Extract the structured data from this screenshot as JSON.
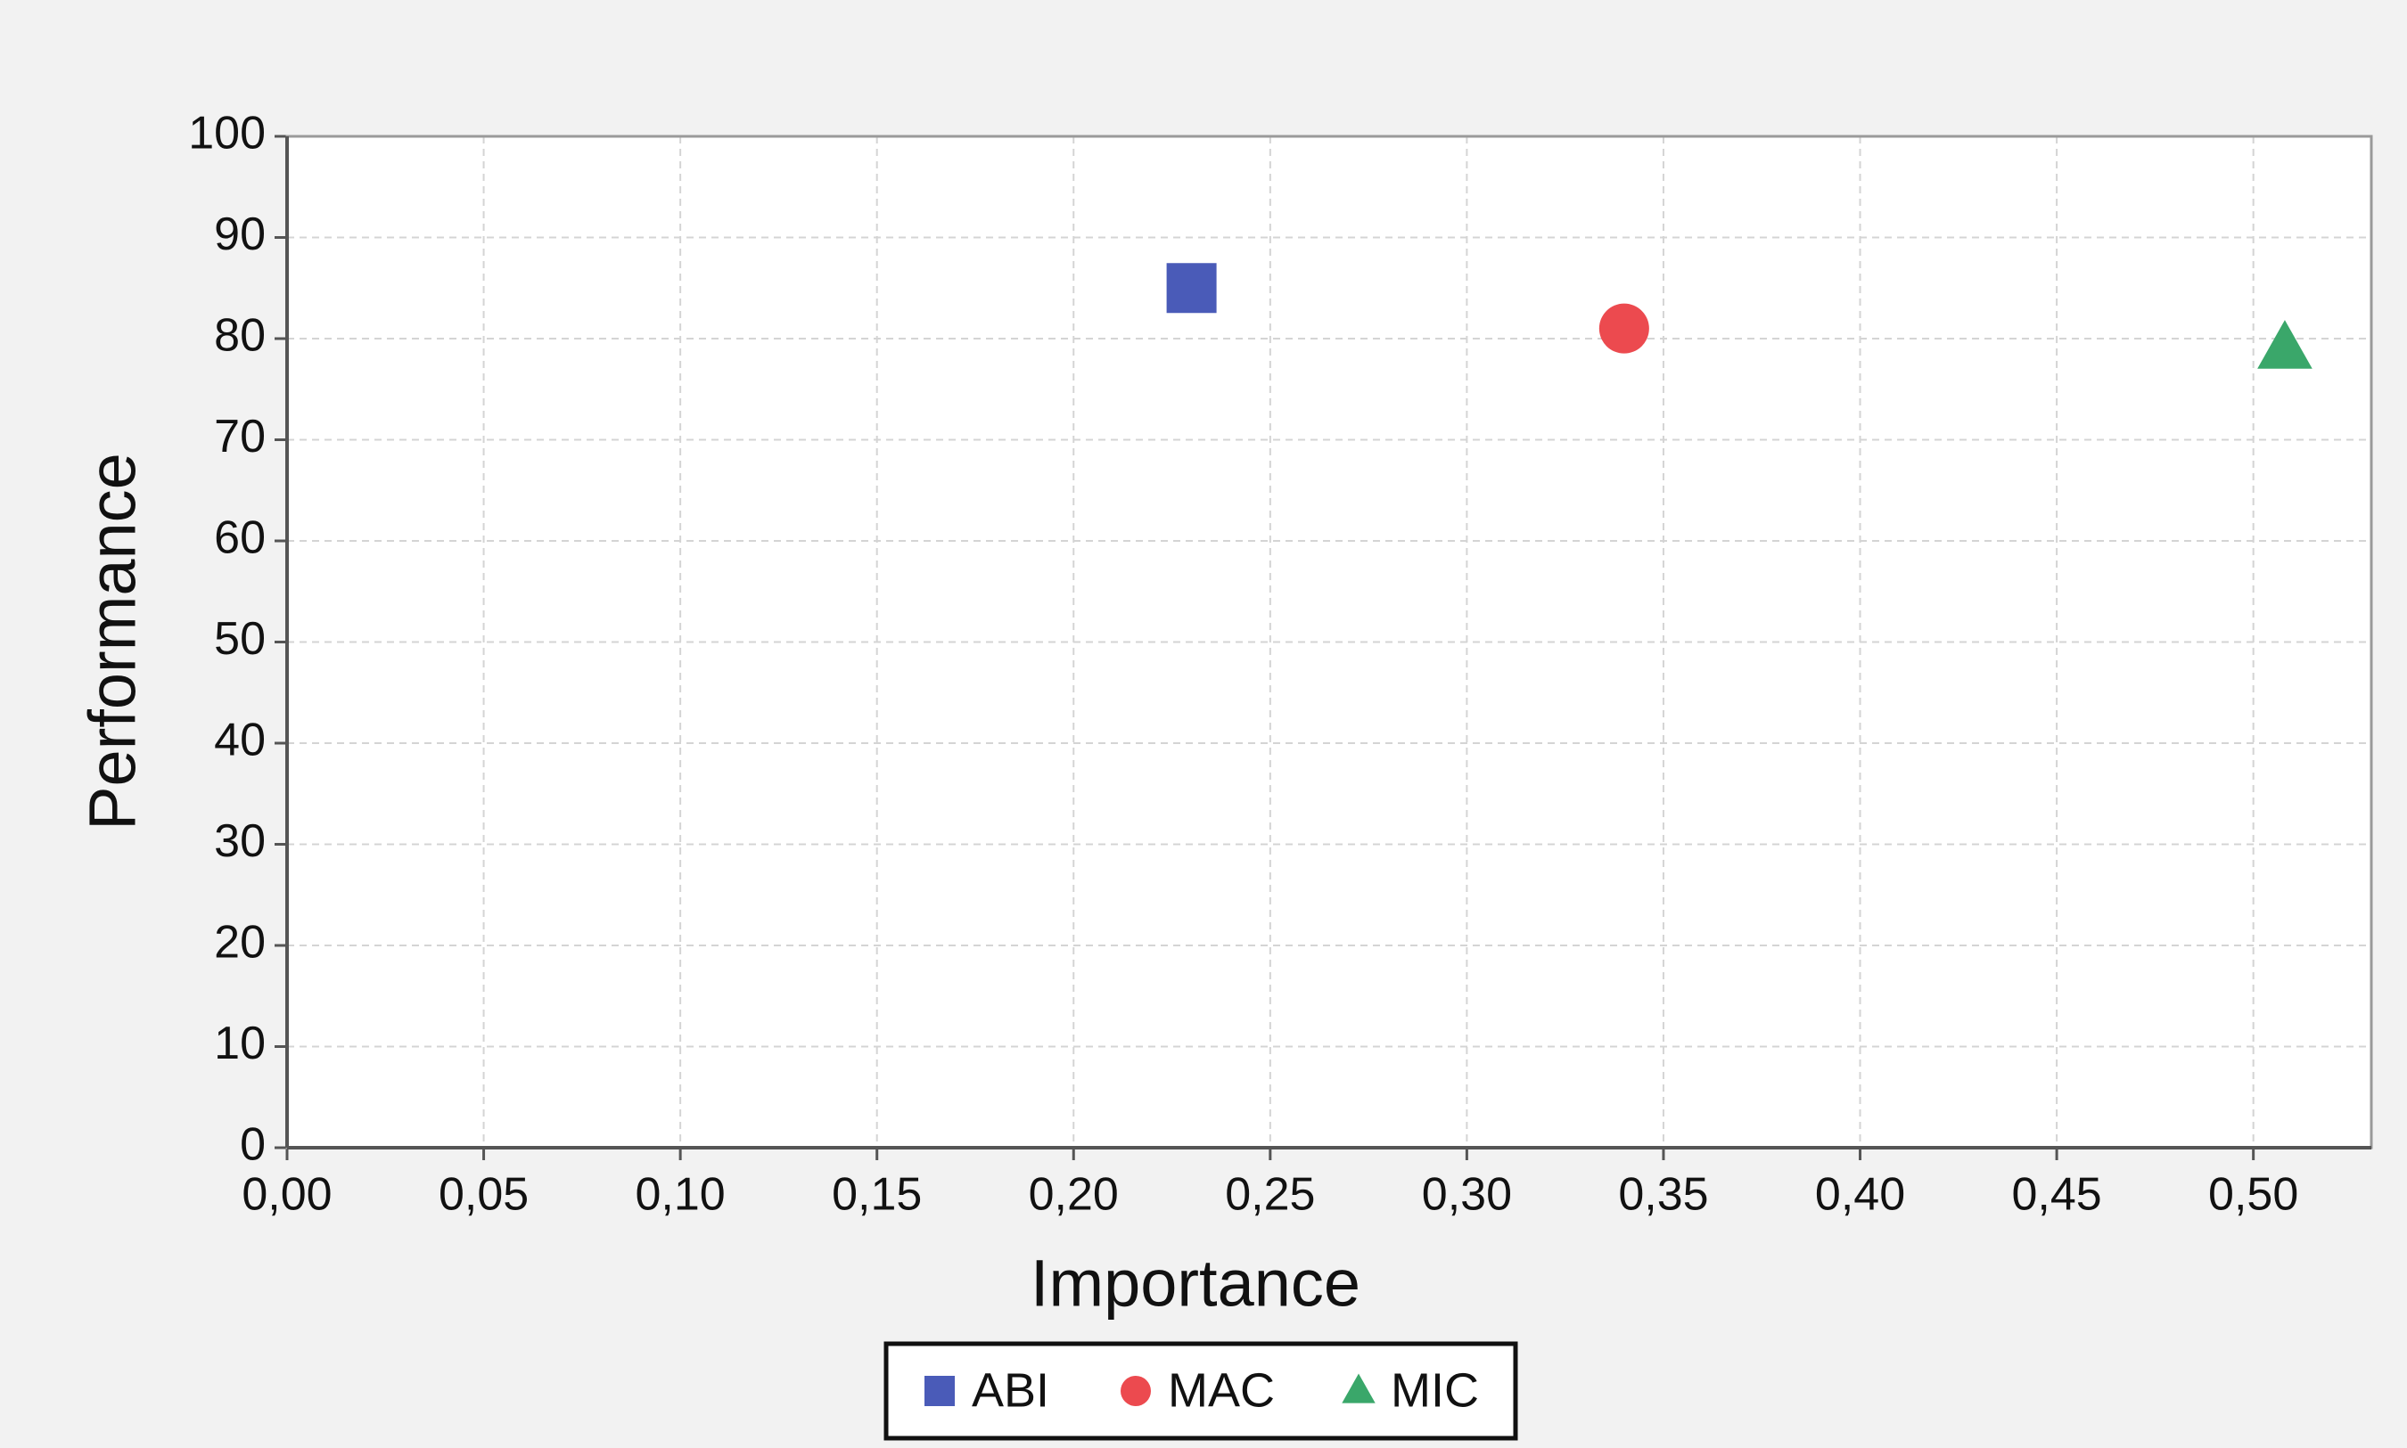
{
  "chart_data": {
    "type": "scatter",
    "x_label": "Importance",
    "y_label": "Performance",
    "xlim": [
      0,
      0.53
    ],
    "ylim": [
      0,
      100
    ],
    "xticks": [
      {
        "value": 0,
        "label": "0,00"
      },
      {
        "value": 0.05,
        "label": "0,05"
      },
      {
        "value": 0.1,
        "label": "0,10"
      },
      {
        "value": 0.15,
        "label": "0,15"
      },
      {
        "value": 0.2,
        "label": "0,20"
      },
      {
        "value": 0.25,
        "label": "0,25"
      },
      {
        "value": 0.3,
        "label": "0,30"
      },
      {
        "value": 0.35,
        "label": "0,35"
      },
      {
        "value": 0.4,
        "label": "0,40"
      },
      {
        "value": 0.45,
        "label": "0,45"
      },
      {
        "value": 0.5,
        "label": "0,50"
      }
    ],
    "yticks": [
      0,
      10,
      20,
      30,
      40,
      50,
      60,
      70,
      80,
      90,
      100
    ],
    "grid": true,
    "legend": "bottom",
    "series": [
      {
        "name": "ABI",
        "color": "#4a5bb8",
        "marker": "square",
        "x": [
          0.23
        ],
        "values": [
          85
        ]
      },
      {
        "name": "MAC",
        "color": "#ec4a4f",
        "marker": "circle",
        "x": [
          0.34
        ],
        "values": [
          81
        ]
      },
      {
        "name": "MIC",
        "color": "#3aa76a",
        "marker": "triangle",
        "x": [
          0.508
        ],
        "values": [
          79
        ]
      }
    ]
  }
}
